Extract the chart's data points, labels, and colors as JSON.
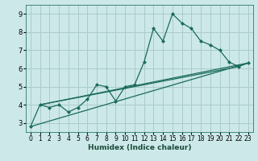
{
  "title": "",
  "xlabel": "Humidex (Indice chaleur)",
  "ylabel": "",
  "bg_color": "#cce8e8",
  "grid_color": "#aacccc",
  "line_color": "#1a6b5a",
  "xlim": [
    -0.5,
    23.5
  ],
  "ylim": [
    2.5,
    9.5
  ],
  "xticks": [
    0,
    1,
    2,
    3,
    4,
    5,
    6,
    7,
    8,
    9,
    10,
    11,
    12,
    13,
    14,
    15,
    16,
    17,
    18,
    19,
    20,
    21,
    22,
    23
  ],
  "yticks": [
    3,
    4,
    5,
    6,
    7,
    8,
    9
  ],
  "series": [
    [
      0,
      2.8
    ],
    [
      1,
      4.0
    ],
    [
      2,
      3.85
    ],
    [
      3,
      4.0
    ],
    [
      4,
      3.6
    ],
    [
      5,
      3.85
    ],
    [
      6,
      4.3
    ],
    [
      7,
      5.1
    ],
    [
      8,
      5.0
    ],
    [
      9,
      4.2
    ],
    [
      10,
      5.0
    ],
    [
      11,
      5.1
    ],
    [
      12,
      6.35
    ],
    [
      13,
      8.2
    ],
    [
      14,
      7.5
    ],
    [
      15,
      9.0
    ],
    [
      16,
      8.5
    ],
    [
      17,
      8.2
    ],
    [
      18,
      7.5
    ],
    [
      19,
      7.3
    ],
    [
      20,
      7.0
    ],
    [
      21,
      6.35
    ],
    [
      22,
      6.1
    ],
    [
      23,
      6.3
    ]
  ],
  "line2": [
    [
      0,
      2.8
    ],
    [
      23,
      6.3
    ]
  ],
  "line3": [
    [
      1,
      4.0
    ],
    [
      23,
      6.3
    ]
  ],
  "line4": [
    [
      1,
      4.0
    ],
    [
      22,
      6.1
    ]
  ]
}
